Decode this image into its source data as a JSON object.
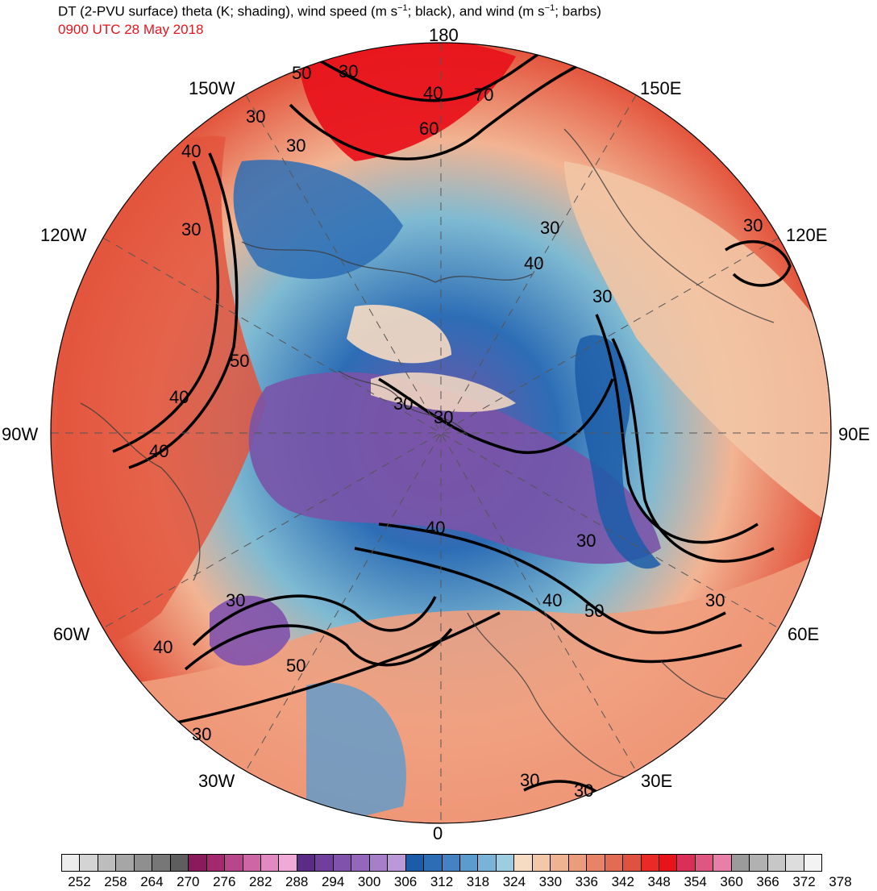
{
  "header": {
    "title_pre": "DT (2-PVU surface) theta (K; shading), wind speed (m s",
    "title_sup1": "−1",
    "title_mid": "; black), and wind (m s",
    "title_sup2": "−1",
    "title_post": "; barbs)",
    "timestamp": "0900 UTC 28 May 2018",
    "timestamp_color": "#e8141c"
  },
  "map": {
    "projection": "north-polar-stereographic",
    "longitude_labels": {
      "top": "180",
      "bottom": "0",
      "left": "90W",
      "right": "90E",
      "upper_left_outer": "120W",
      "upper_left_inner": "150W",
      "upper_right_inner": "150E",
      "upper_right_outer": "120E",
      "lower_left_outer": "60W",
      "lower_left_inner": "30W",
      "lower_right_inner": "30E",
      "lower_right_outer": "60E"
    },
    "contour_labels": [
      "50",
      "30",
      "40",
      "70",
      "60",
      "30",
      "30",
      "40",
      "30",
      "30",
      "30",
      "40",
      "50",
      "40",
      "40",
      "30",
      "30",
      "30",
      "40",
      "30",
      "40",
      "50",
      "30",
      "30",
      "50",
      "40",
      "30",
      "30",
      "30"
    ],
    "background_colors": {
      "cold_core": "#7a54a8",
      "cool": "#2d6db5",
      "mid": "#7fbad2",
      "warm": "#f2b493",
      "hot": "#e3553d",
      "very_hot": "#e8141c"
    }
  },
  "colorbar": {
    "ticks": [
      "252",
      "258",
      "264",
      "270",
      "276",
      "282",
      "288",
      "294",
      "300",
      "306",
      "312",
      "318",
      "324",
      "330",
      "336",
      "342",
      "348",
      "354",
      "360",
      "366",
      "372",
      "378"
    ],
    "colors": [
      "#ececec",
      "#d4d4d4",
      "#bdbdbd",
      "#a6a6a6",
      "#8f8f8f",
      "#777777",
      "#5e5e5e",
      "#8b1a5a",
      "#a3286d",
      "#b8468a",
      "#cc66a5",
      "#e08ac1",
      "#f0aad7",
      "#5a2c86",
      "#6f3f9b",
      "#8152ac",
      "#9467ba",
      "#a77ec8",
      "#bb99d6",
      "#1b5ca8",
      "#2d6db5",
      "#4482c2",
      "#5c9bcd",
      "#79b3d6",
      "#9dcde0",
      "#f6dcc3",
      "#f3c8a8",
      "#efb392",
      "#eb9c7c",
      "#e78467",
      "#e36b53",
      "#df523f",
      "#ea2b25",
      "#e8141c",
      "#d9305a",
      "#e05682",
      "#e77fa8",
      "#9b9b9b",
      "#b1b1b1",
      "#c7c7c7",
      "#dddddd",
      "#f3f3f3"
    ]
  }
}
